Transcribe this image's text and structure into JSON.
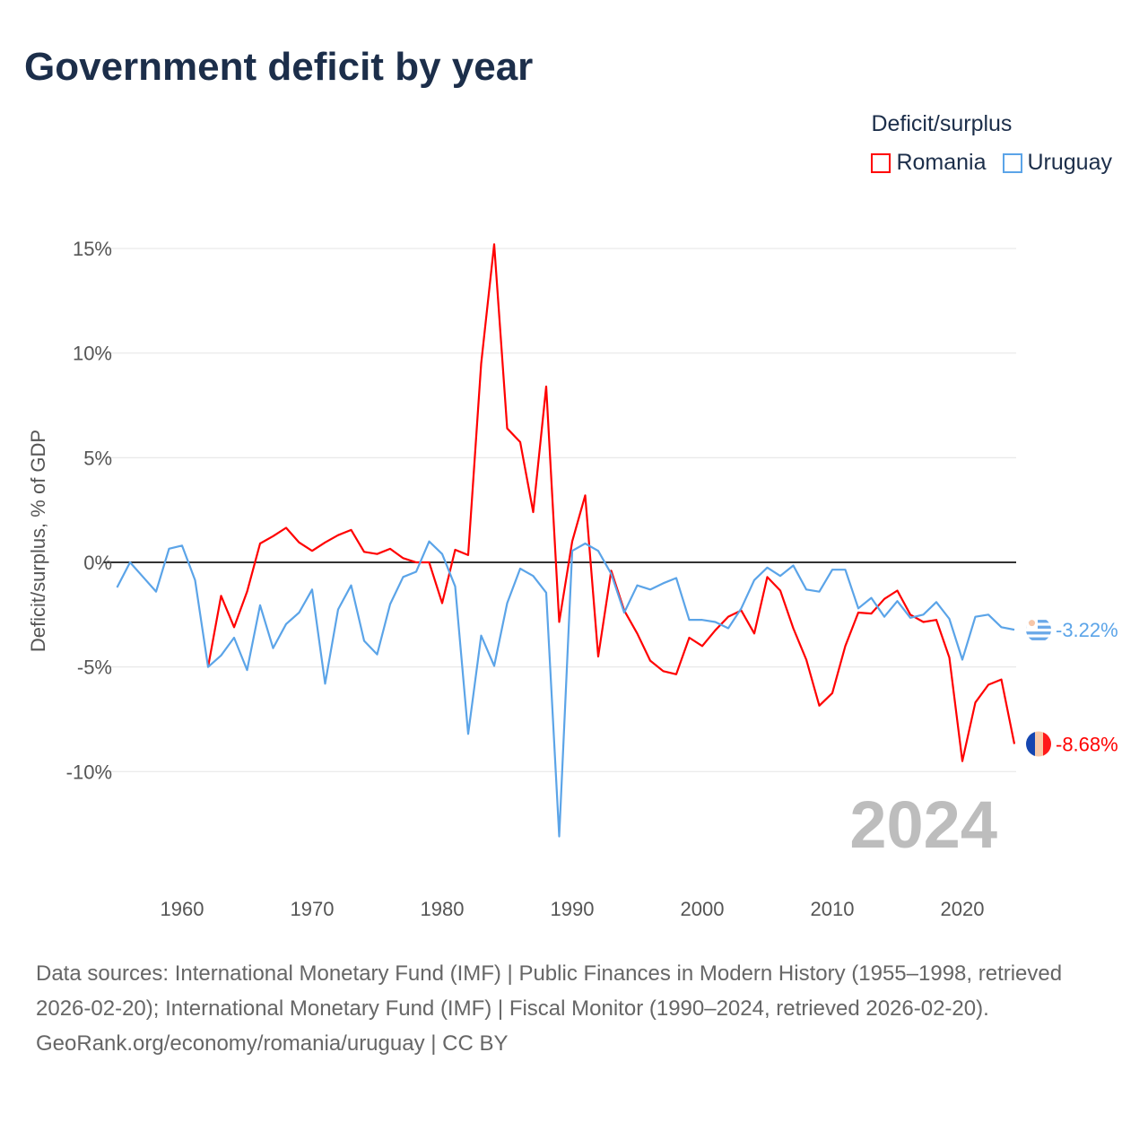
{
  "title": "Government deficit by year",
  "legend": {
    "title": "Deficit/surplus",
    "items": [
      {
        "label": "Romania",
        "color": "#ff0000"
      },
      {
        "label": "Uruguay",
        "color": "#5ba4e8"
      }
    ]
  },
  "footer": {
    "sources": "Data sources: International Monetary Fund (IMF) | Public Finances in Modern History (1955–1998, retrieved 2026-02-20); International Monetary Fund (IMF) | Fiscal Monitor (1990–2024, retrieved 2026-02-20).",
    "credit": "GeoRank.org/economy/romania/uruguay | CC BY"
  },
  "chart_data": {
    "type": "line",
    "title": "Government deficit by year",
    "xlabel": "",
    "ylabel": "Deficit/surplus, % of GDP",
    "xlim": [
      1955,
      2024
    ],
    "ylim": [
      -14,
      16
    ],
    "x_ticks": [
      1960,
      1970,
      1980,
      1990,
      2000,
      2010,
      2020
    ],
    "y_ticks": [
      15,
      10,
      5,
      0,
      -5,
      -10
    ],
    "y_tick_labels": [
      "15%",
      "10%",
      "5%",
      "0%",
      "-5%",
      "-10%"
    ],
    "grid": true,
    "legend_position": "top-right",
    "current_year_label": "2024",
    "series": [
      {
        "name": "Romania",
        "color": "#ff0000",
        "start_year": 1962,
        "end_label": "-8.68%",
        "values": [
          -5.0,
          -1.6,
          -3.1,
          -1.4,
          0.9,
          1.25,
          1.65,
          0.95,
          0.55,
          0.95,
          1.3,
          1.55,
          0.5,
          0.4,
          0.65,
          0.2,
          0,
          0,
          -1.95,
          0.6,
          0.35,
          9.5,
          15.2,
          6.4,
          5.75,
          2.4,
          8.4,
          -2.85,
          1.0,
          3.2,
          -4.5,
          -0.4,
          -2.3,
          -3.4,
          -4.7,
          -5.2,
          -5.35,
          -3.6,
          -4.0,
          -3.25,
          -2.6,
          -2.3,
          -3.4,
          -0.7,
          -1.35,
          -3.15,
          -4.65,
          -6.85,
          -6.25,
          -4.0,
          -2.4,
          -2.45,
          -1.75,
          -1.35,
          -2.5,
          -2.85,
          -2.75,
          -4.55,
          -9.5,
          -6.7,
          -5.85,
          -5.6,
          -8.68
        ]
      },
      {
        "name": "Uruguay",
        "color": "#5ba4e8",
        "start_year": 1955,
        "end_label": "-3.22%",
        "values": [
          -1.2,
          0,
          -0.7,
          -1.4,
          0.65,
          0.8,
          -0.85,
          -5.0,
          -4.45,
          -3.6,
          -5.15,
          -2.05,
          -4.1,
          -2.95,
          -2.4,
          -1.3,
          -5.8,
          -2.25,
          -1.1,
          -3.75,
          -4.4,
          -2.0,
          -0.7,
          -0.45,
          1.0,
          0.4,
          -1.15,
          -8.2,
          -3.5,
          -4.95,
          -1.95,
          -0.3,
          -0.65,
          -1.45,
          -13.1,
          0.55,
          0.9,
          0.55,
          -0.55,
          -2.4,
          -1.1,
          -1.3,
          -1.0,
          -0.75,
          -2.75,
          -2.75,
          -2.85,
          -3.15,
          -2.2,
          -0.85,
          -0.25,
          -0.65,
          -0.15,
          -1.3,
          -1.4,
          -0.35,
          -0.35,
          -2.2,
          -1.7,
          -2.6,
          -1.85,
          -2.65,
          -2.5,
          -1.9,
          -2.7,
          -4.65,
          -2.6,
          -2.5,
          -3.1,
          -3.22
        ]
      }
    ]
  }
}
